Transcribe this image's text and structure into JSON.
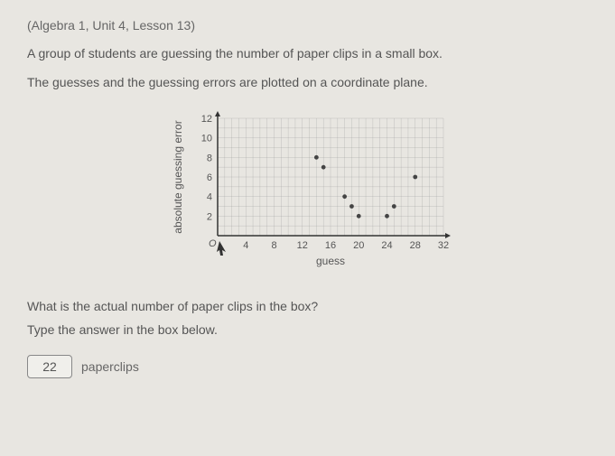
{
  "header": "(Algebra 1, Unit 4, Lesson 13)",
  "intro1": "A group of students are guessing the number of paper clips in a small box.",
  "intro2": "The guesses and the guessing errors are plotted on a coordinate plane.",
  "question": "What is the actual number of paper clips in the box?",
  "instruction": "Type the answer in the box below.",
  "answer_value": "22",
  "answer_unit": "paperclips",
  "chart": {
    "type": "scatter",
    "xlabel": "guess",
    "ylabel": "absolute guessing error",
    "xlim": [
      0,
      32
    ],
    "ylim": [
      0,
      12
    ],
    "xtick_start": 4,
    "xtick_step": 4,
    "ytick_start": 2,
    "ytick_step": 2,
    "xminor": 1,
    "yminor": 1,
    "points": [
      {
        "x": 14,
        "y": 8
      },
      {
        "x": 15,
        "y": 7
      },
      {
        "x": 18,
        "y": 4
      },
      {
        "x": 19,
        "y": 3
      },
      {
        "x": 20,
        "y": 2
      },
      {
        "x": 24,
        "y": 2
      },
      {
        "x": 25,
        "y": 3
      },
      {
        "x": 28,
        "y": 6
      }
    ],
    "point_color": "#444444",
    "grid_color": "#888888",
    "axis_color": "#333333",
    "label_fontsize": 12,
    "tick_fontsize": 11,
    "background": "#e8e6e1",
    "marker_radius": 2.4
  }
}
